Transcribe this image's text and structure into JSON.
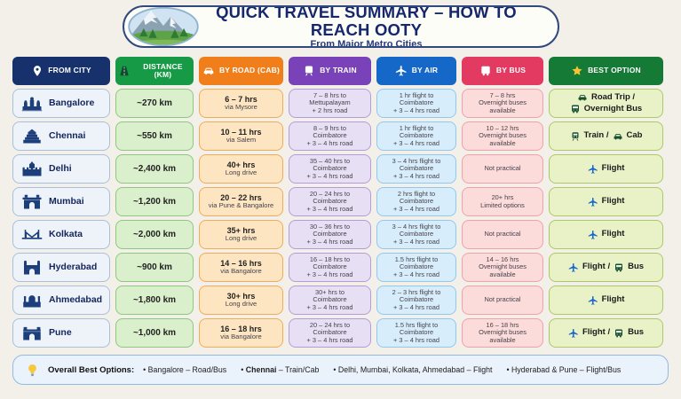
{
  "header": {
    "title": "QUICK TRAVEL SUMMARY – HOW TO REACH OOTY",
    "subtitle": "From Major Metro Cities",
    "logo_icon": "mountain-logo-icon"
  },
  "colors": {
    "flight_icon": "#1766cf",
    "vehicle_icon": "#17502f",
    "star_icon": "#f6c334",
    "bulb_icon": "#f8c83c"
  },
  "columns": [
    {
      "key": "city",
      "label": "FROM CITY",
      "icon": "pin-icon",
      "header_bg": "#16316c",
      "cell_bg": "#eef3f9",
      "cell_border": "#a9bfdc"
    },
    {
      "key": "distance",
      "label": "DISTANCE (KM)",
      "icon": "road-icon",
      "header_bg": "#169a46",
      "cell_bg": "#daefcb",
      "cell_border": "#8dc87e"
    },
    {
      "key": "road",
      "label": "BY ROAD (CAB)",
      "icon": "car-icon",
      "header_bg": "#f07f1b",
      "cell_bg": "#fde5c1",
      "cell_border": "#f2ab56"
    },
    {
      "key": "train",
      "label": "BY TRAIN",
      "icon": "train-icon",
      "header_bg": "#7a42b8",
      "cell_bg": "#e7e0f5",
      "cell_border": "#b49bdc"
    },
    {
      "key": "air",
      "label": "BY AIR",
      "icon": "plane-icon",
      "header_bg": "#1668c8",
      "cell_bg": "#d8edfb",
      "cell_border": "#90c8f0"
    },
    {
      "key": "bus",
      "label": "BY BUS",
      "icon": "bus-icon",
      "header_bg": "#e23a60",
      "cell_bg": "#fcdbdb",
      "cell_border": "#f2a0ab"
    },
    {
      "key": "best",
      "label": "BEST OPTION",
      "icon": "star-icon",
      "header_bg": "#157a35",
      "cell_bg": "#e9f2c7",
      "cell_border": "#abc964"
    }
  ],
  "rows": [
    {
      "city": "Bangalore",
      "city_icon": "palace-icon",
      "distance": "~270 km",
      "road": [
        "6 – 7 hrs",
        "via Mysore"
      ],
      "train": [
        "7 – 8 hrs to",
        "Mettupalayam",
        "+ 2 hrs road"
      ],
      "air": [
        "1 hr flight to",
        "Coimbatore",
        "+ 3 – 4 hrs road"
      ],
      "bus": [
        "7 – 8 hrs",
        "Overnight buses",
        "available"
      ],
      "best": [
        {
          "icon": "car-icon",
          "text": "Road Trip /"
        },
        {
          "icon": "bus-icon",
          "text": "Overnight Bus"
        }
      ]
    },
    {
      "city": "Chennai",
      "city_icon": "temple-icon",
      "distance": "~550 km",
      "road": [
        "10 – 11 hrs",
        "via Salem"
      ],
      "train": [
        "8 – 9 hrs to",
        "Coimbatore",
        "+ 3 – 4 hrs road"
      ],
      "air": [
        "1 hr flight to",
        "Coimbatore",
        "+ 3 – 4 hrs road"
      ],
      "bus": [
        "10 – 12 hrs",
        "Overnight buses",
        "available"
      ],
      "best": [
        {
          "icon": "train-icon",
          "text": "Train /"
        },
        {
          "icon": "car-icon",
          "text": "Cab"
        }
      ]
    },
    {
      "city": "Delhi",
      "city_icon": "fort-icon",
      "distance": "~2,400 km",
      "road": [
        "40+ hrs",
        "Long drive"
      ],
      "train": [
        "35 – 40 hrs to",
        "Coimbatore",
        "+ 3 – 4 hrs road"
      ],
      "air": [
        "3 – 4 hrs flight to",
        "Coimbatore",
        "+ 3 – 4 hrs road"
      ],
      "bus": [
        "Not practical"
      ],
      "best": [
        {
          "icon": "plane-icon",
          "text": "Flight"
        }
      ]
    },
    {
      "city": "Mumbai",
      "city_icon": "gateway-icon",
      "distance": "~1,200 km",
      "road": [
        "20 – 22 hrs",
        "via Pune & Bangalore"
      ],
      "train": [
        "20 – 24 hrs to",
        "Coimbatore",
        "+ 3 – 4 hrs road"
      ],
      "air": [
        "2 hrs flight to",
        "Coimbatore",
        "+ 3 – 4 hrs road"
      ],
      "bus": [
        "20+ hrs",
        "Limited options"
      ],
      "best": [
        {
          "icon": "plane-icon",
          "text": "Flight"
        }
      ]
    },
    {
      "city": "Kolkata",
      "city_icon": "bridge-icon",
      "distance": "~2,000 km",
      "road": [
        "35+ hrs",
        "Long drive"
      ],
      "train": [
        "30 – 36 hrs to",
        "Coimbatore",
        "+ 3 – 4 hrs road"
      ],
      "air": [
        "3 – 4 hrs flight to",
        "Coimbatore",
        "+ 3 – 4 hrs road"
      ],
      "bus": [
        "Not practical"
      ],
      "best": [
        {
          "icon": "plane-icon",
          "text": "Flight"
        }
      ]
    },
    {
      "city": "Hyderabad",
      "city_icon": "charminar-icon",
      "distance": "~900 km",
      "road": [
        "14 – 16 hrs",
        "via Bangalore"
      ],
      "train": [
        "16 – 18 hrs to",
        "Coimbatore",
        "+ 3 – 4 hrs road"
      ],
      "air": [
        "1.5 hrs flight to",
        "Coimbatore",
        "+ 3 – 4 hrs road"
      ],
      "bus": [
        "14 – 16 hrs",
        "Overnight buses",
        "available"
      ],
      "best": [
        {
          "icon": "plane-icon",
          "text": "Flight /"
        },
        {
          "icon": "bus-icon",
          "text": "Bus"
        }
      ]
    },
    {
      "city": "Ahmedabad",
      "city_icon": "mosque-icon",
      "distance": "~1,800 km",
      "road": [
        "30+ hrs",
        "Long drive"
      ],
      "train": [
        "30+ hrs to",
        "Coimbatore",
        "+ 3 – 4 hrs road"
      ],
      "air": [
        "2 – 3 hrs flight to",
        "Coimbatore",
        "+ 3 – 4 hrs road"
      ],
      "bus": [
        "Not practical"
      ],
      "best": [
        {
          "icon": "plane-icon",
          "text": "Flight"
        }
      ]
    },
    {
      "city": "Pune",
      "city_icon": "gate-icon",
      "distance": "~1,000 km",
      "road": [
        "16 – 18 hrs",
        "via Bangalore"
      ],
      "train": [
        "20 – 24 hrs to",
        "Coimbatore",
        "+ 3 – 4 hrs road"
      ],
      "air": [
        "1.5 hrs flight to",
        "Coimbatore",
        "+ 3 – 4 hrs road"
      ],
      "bus": [
        "16 – 18 hrs",
        "Overnight buses",
        "available"
      ],
      "best": [
        {
          "icon": "plane-icon",
          "text": "Flight /"
        },
        {
          "icon": "bus-icon",
          "text": "Bus"
        }
      ]
    }
  ],
  "footer": {
    "icon": "bulb-icon",
    "label": "Overall Best Options:",
    "bullet": "•",
    "items": [
      {
        "bold": "",
        "text": "Bangalore – Road/Bus"
      },
      {
        "bold": "Chennai",
        "text": " – Train/Cab"
      },
      {
        "bold": "",
        "text": "Delhi, Mumbai, Kolkata, Ahmedabad – Flight"
      },
      {
        "bold": "",
        "text": "Hyderabad & Pune – Flight/Bus"
      }
    ]
  },
  "chart_data": {
    "type": "table",
    "title": "QUICK TRAVEL SUMMARY – HOW TO REACH OOTY",
    "subtitle": "From Major Metro Cities",
    "columns": [
      "FROM CITY",
      "DISTANCE (KM)",
      "BY ROAD (CAB)",
      "BY TRAIN",
      "BY AIR",
      "BY BUS",
      "BEST OPTION"
    ],
    "rows": [
      [
        "Bangalore",
        "~270 km",
        "6 – 7 hrs via Mysore",
        "7 – 8 hrs to Mettupalayam + 2 hrs road",
        "1 hr flight to Coimbatore + 3 – 4 hrs road",
        "7 – 8 hrs Overnight buses available",
        "Road Trip / Overnight Bus"
      ],
      [
        "Chennai",
        "~550 km",
        "10 – 11 hrs via Salem",
        "8 – 9 hrs to Coimbatore + 3 – 4 hrs road",
        "1 hr flight to Coimbatore + 3 – 4 hrs road",
        "10 – 12 hrs Overnight buses available",
        "Train / Cab"
      ],
      [
        "Delhi",
        "~2,400 km",
        "40+ hrs Long drive",
        "35 – 40 hrs to Coimbatore + 3 – 4 hrs road",
        "3 – 4 hrs flight to Coimbatore + 3 – 4 hrs road",
        "Not practical",
        "Flight"
      ],
      [
        "Mumbai",
        "~1,200 km",
        "20 – 22 hrs via Pune & Bangalore",
        "20 – 24 hrs to Coimbatore + 3 – 4 hrs road",
        "2 hrs flight to Coimbatore + 3 – 4 hrs road",
        "20+ hrs Limited options",
        "Flight"
      ],
      [
        "Kolkata",
        "~2,000 km",
        "35+ hrs Long drive",
        "30 – 36 hrs to Coimbatore + 3 – 4 hrs road",
        "3 – 4 hrs flight to Coimbatore + 3 – 4 hrs road",
        "Not practical",
        "Flight"
      ],
      [
        "Hyderabad",
        "~900 km",
        "14 – 16 hrs via Bangalore",
        "16 – 18 hrs to Coimbatore + 3 – 4 hrs road",
        "1.5 hrs flight to Coimbatore + 3 – 4 hrs road",
        "14 – 16 hrs Overnight buses available",
        "Flight / Bus"
      ],
      [
        "Ahmedabad",
        "~1,800 km",
        "30+ hrs Long drive",
        "30+ hrs to Coimbatore + 3 – 4 hrs road",
        "2 – 3 hrs flight to Coimbatore + 3 – 4 hrs road",
        "Not practical",
        "Flight"
      ],
      [
        "Pune",
        "~1,000 km",
        "16 – 18 hrs via Bangalore",
        "20 – 24 hrs to Coimbatore + 3 – 4 hrs road",
        "1.5 hrs flight to Coimbatore + 3 – 4 hrs road",
        "16 – 18 hrs Overnight buses available",
        "Flight / Bus"
      ]
    ]
  }
}
